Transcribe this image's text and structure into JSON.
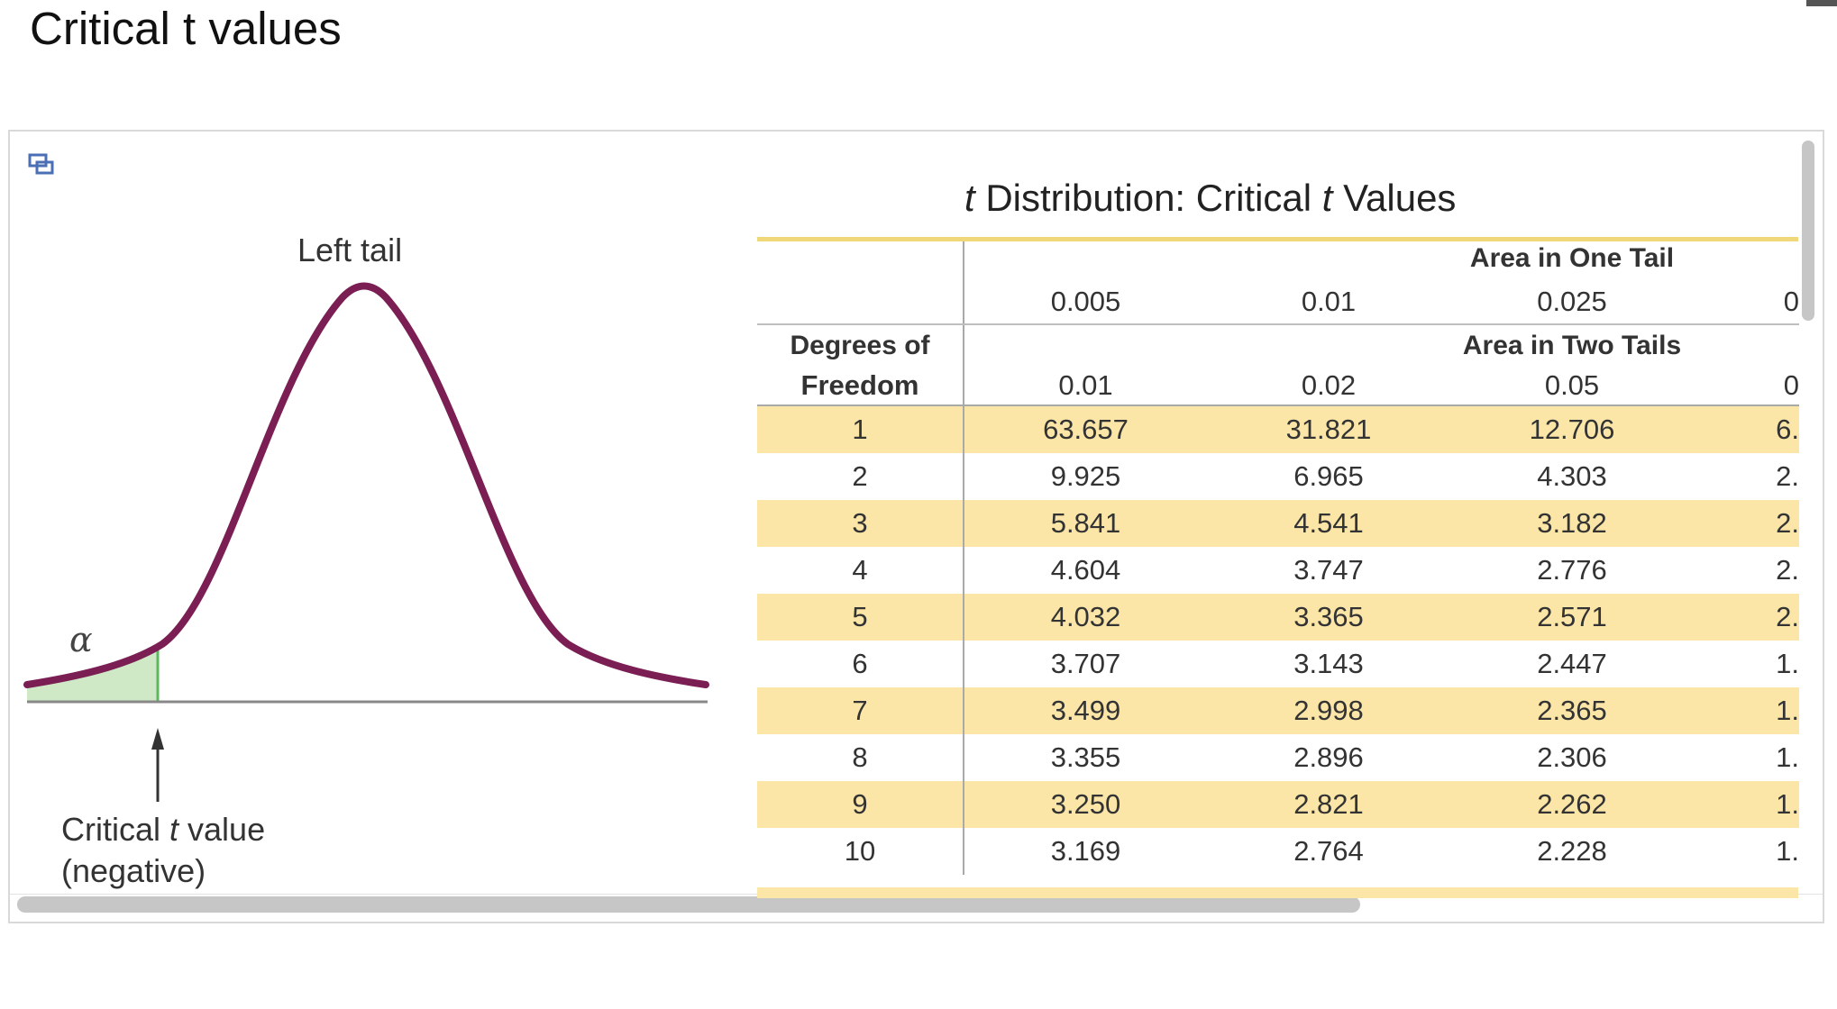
{
  "page": {
    "title": "Critical t values"
  },
  "figure": {
    "left_tail_label": "Left tail",
    "alpha_symbol": "α",
    "critical_label_line1_pre": "Critical ",
    "critical_label_line1_italic": "t",
    "critical_label_line1_post": " value",
    "critical_label_line2": "(negative)",
    "colors": {
      "curve": "#7a1e54",
      "shade": "#cfe8c6",
      "shade_edge": "#5cb85c",
      "axis": "#888888"
    }
  },
  "table": {
    "title_italic1": "t",
    "title_mid": " Distribution: Critical ",
    "title_italic2": "t",
    "title_end": " Values",
    "one_tail_header": "Area in One Tail",
    "two_tail_header": "Area in Two Tails",
    "df_header_line1": "Degrees of",
    "df_header_line2": "Freedom",
    "one_tail": [
      "0.005",
      "0.01",
      "0.025",
      "0"
    ],
    "two_tail": [
      "0.01",
      "0.02",
      "0.05",
      "0"
    ],
    "rows": [
      {
        "df": "1",
        "v": [
          "63.657",
          "31.821",
          "12.706",
          "6."
        ]
      },
      {
        "df": "2",
        "v": [
          "9.925",
          "6.965",
          "4.303",
          "2."
        ]
      },
      {
        "df": "3",
        "v": [
          "5.841",
          "4.541",
          "3.182",
          "2."
        ]
      },
      {
        "df": "4",
        "v": [
          "4.604",
          "3.747",
          "2.776",
          "2."
        ]
      },
      {
        "df": "5",
        "v": [
          "4.032",
          "3.365",
          "2.571",
          "2."
        ]
      },
      {
        "df": "6",
        "v": [
          "3.707",
          "3.143",
          "2.447",
          "1."
        ]
      },
      {
        "df": "7",
        "v": [
          "3.499",
          "2.998",
          "2.365",
          "1."
        ]
      },
      {
        "df": "8",
        "v": [
          "3.355",
          "2.896",
          "2.306",
          "1."
        ]
      },
      {
        "df": "9",
        "v": [
          "3.250",
          "2.821",
          "2.262",
          "1."
        ]
      },
      {
        "df": "10",
        "v": [
          "3.169",
          "2.764",
          "2.228",
          "1."
        ]
      }
    ],
    "colors": {
      "shade": "#fbe6a8",
      "rule": "#efd77a"
    }
  }
}
